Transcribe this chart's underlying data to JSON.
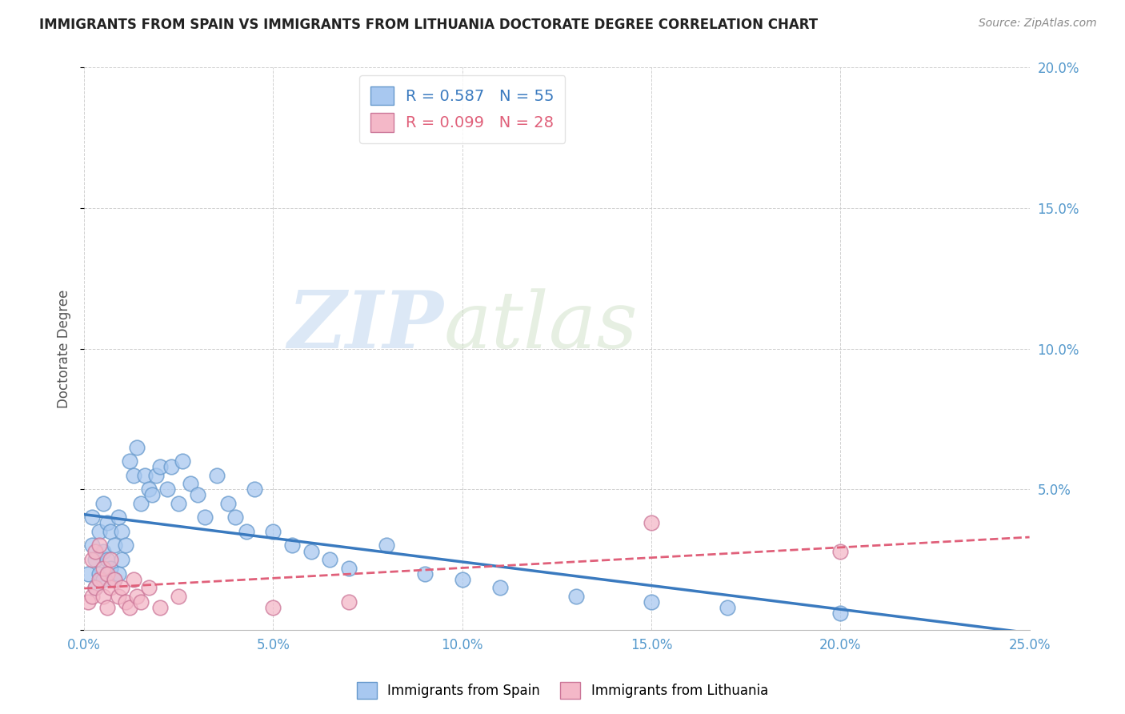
{
  "title": "IMMIGRANTS FROM SPAIN VS IMMIGRANTS FROM LITHUANIA DOCTORATE DEGREE CORRELATION CHART",
  "source": "Source: ZipAtlas.com",
  "ylabel": "Doctorate Degree",
  "xlim": [
    0.0,
    0.25
  ],
  "ylim": [
    0.0,
    0.2
  ],
  "xticks": [
    0.0,
    0.05,
    0.1,
    0.15,
    0.2,
    0.25
  ],
  "yticks": [
    0.0,
    0.05,
    0.1,
    0.15,
    0.2
  ],
  "spain_color": "#a8c8f0",
  "spain_edge": "#6699cc",
  "lithuania_color": "#f4b8c8",
  "lithuania_edge": "#cc7799",
  "R_spain": 0.587,
  "N_spain": 55,
  "R_lithuania": 0.099,
  "N_lithuania": 28,
  "spain_x": [
    0.001,
    0.002,
    0.002,
    0.003,
    0.003,
    0.004,
    0.004,
    0.005,
    0.005,
    0.005,
    0.006,
    0.006,
    0.007,
    0.007,
    0.008,
    0.008,
    0.009,
    0.009,
    0.01,
    0.01,
    0.011,
    0.012,
    0.013,
    0.014,
    0.015,
    0.016,
    0.017,
    0.018,
    0.019,
    0.02,
    0.022,
    0.023,
    0.025,
    0.026,
    0.028,
    0.03,
    0.032,
    0.035,
    0.038,
    0.04,
    0.043,
    0.045,
    0.05,
    0.055,
    0.06,
    0.065,
    0.07,
    0.08,
    0.09,
    0.1,
    0.11,
    0.13,
    0.15,
    0.17,
    0.2
  ],
  "spain_y": [
    0.02,
    0.03,
    0.04,
    0.015,
    0.025,
    0.02,
    0.035,
    0.018,
    0.028,
    0.045,
    0.025,
    0.038,
    0.022,
    0.035,
    0.018,
    0.03,
    0.02,
    0.04,
    0.025,
    0.035,
    0.03,
    0.06,
    0.055,
    0.065,
    0.045,
    0.055,
    0.05,
    0.048,
    0.055,
    0.058,
    0.05,
    0.058,
    0.045,
    0.06,
    0.052,
    0.048,
    0.04,
    0.055,
    0.045,
    0.04,
    0.035,
    0.05,
    0.035,
    0.03,
    0.028,
    0.025,
    0.022,
    0.03,
    0.02,
    0.018,
    0.015,
    0.012,
    0.01,
    0.008,
    0.006
  ],
  "lithuania_x": [
    0.001,
    0.002,
    0.002,
    0.003,
    0.003,
    0.004,
    0.004,
    0.005,
    0.005,
    0.006,
    0.006,
    0.007,
    0.007,
    0.008,
    0.009,
    0.01,
    0.011,
    0.012,
    0.013,
    0.014,
    0.015,
    0.017,
    0.02,
    0.025,
    0.05,
    0.07,
    0.15,
    0.2
  ],
  "lithuania_y": [
    0.01,
    0.012,
    0.025,
    0.015,
    0.028,
    0.018,
    0.03,
    0.012,
    0.022,
    0.008,
    0.02,
    0.015,
    0.025,
    0.018,
    0.012,
    0.015,
    0.01,
    0.008,
    0.018,
    0.012,
    0.01,
    0.015,
    0.008,
    0.012,
    0.008,
    0.01,
    0.038,
    0.028
  ],
  "watermark_zip": "ZIP",
  "watermark_atlas": "atlas"
}
